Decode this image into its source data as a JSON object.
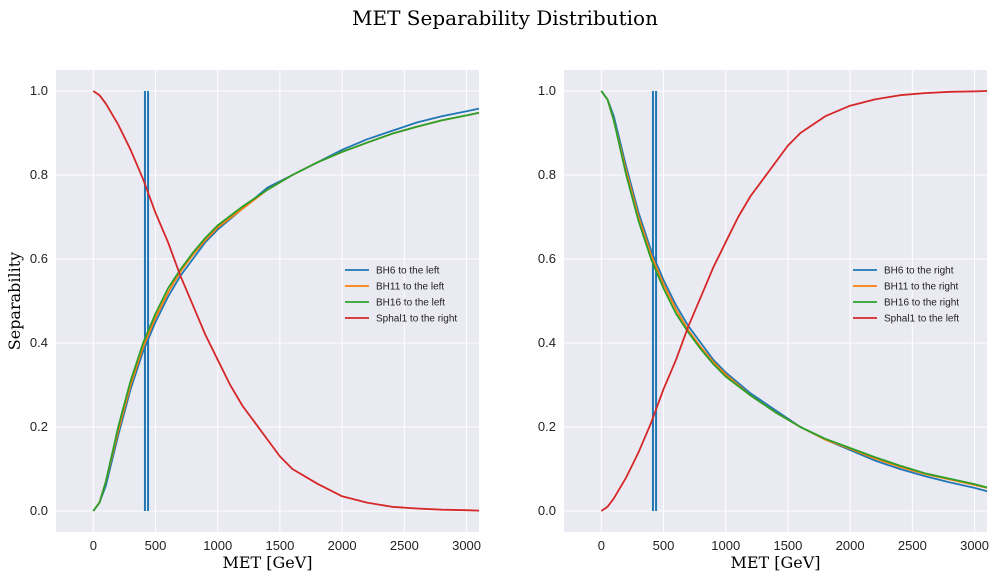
{
  "title": "MET Separability Distribution",
  "chart_data": [
    {
      "type": "line",
      "xlabel": "MET [GeV]",
      "ylabel": "Separability",
      "xlim": [
        -300,
        3100
      ],
      "ylim": [
        -0.05,
        1.05
      ],
      "xticks": [
        0,
        500,
        1000,
        1500,
        2000,
        2500,
        3000
      ],
      "yticks": [
        0.0,
        0.2,
        0.4,
        0.6,
        0.8,
        1.0
      ],
      "grid": true,
      "legend_position": "center-right",
      "vlines": [
        {
          "x": 415,
          "ymin": 0,
          "ymax": 1,
          "color": "#1f77b4"
        },
        {
          "x": 440,
          "ymin": 0,
          "ymax": 1,
          "color": "#1f77b4"
        }
      ],
      "series": [
        {
          "name": "BH6 to the left",
          "color": "#1f77b4",
          "x": [
            0,
            50,
            100,
            200,
            300,
            400,
            500,
            600,
            700,
            800,
            900,
            1000,
            1200,
            1400,
            1600,
            1800,
            2000,
            2200,
            2400,
            2600,
            2800,
            3000,
            3100
          ],
          "y": [
            0.0,
            0.02,
            0.06,
            0.18,
            0.29,
            0.38,
            0.45,
            0.51,
            0.56,
            0.6,
            0.64,
            0.67,
            0.72,
            0.77,
            0.8,
            0.83,
            0.86,
            0.885,
            0.905,
            0.925,
            0.94,
            0.952,
            0.958
          ]
        },
        {
          "name": "BH11 to the left",
          "color": "#ff7f0e",
          "x": [
            0,
            50,
            100,
            200,
            300,
            400,
            500,
            600,
            700,
            800,
            900,
            1000,
            1200,
            1400,
            1600,
            1800,
            2000,
            2200,
            2400,
            2600,
            2800,
            3000,
            3100
          ],
          "y": [
            0.0,
            0.02,
            0.07,
            0.19,
            0.3,
            0.39,
            0.46,
            0.52,
            0.57,
            0.61,
            0.645,
            0.675,
            0.72,
            0.765,
            0.8,
            0.83,
            0.855,
            0.877,
            0.898,
            0.915,
            0.93,
            0.942,
            0.948
          ]
        },
        {
          "name": "BH16 to the left",
          "color": "#2ca02c",
          "x": [
            0,
            50,
            100,
            200,
            300,
            400,
            500,
            600,
            700,
            800,
            900,
            1000,
            1200,
            1400,
            1600,
            1800,
            2000,
            2200,
            2400,
            2600,
            2800,
            3000,
            3100
          ],
          "y": [
            0.0,
            0.02,
            0.07,
            0.2,
            0.31,
            0.4,
            0.47,
            0.53,
            0.575,
            0.615,
            0.65,
            0.68,
            0.725,
            0.765,
            0.8,
            0.83,
            0.855,
            0.877,
            0.898,
            0.915,
            0.93,
            0.942,
            0.948
          ]
        },
        {
          "name": "Sphal1 to the right",
          "color": "#d62728",
          "x": [
            0,
            50,
            100,
            200,
            300,
            400,
            500,
            600,
            700,
            800,
            900,
            1000,
            1100,
            1200,
            1300,
            1400,
            1500,
            1600,
            1800,
            2000,
            2200,
            2400,
            2600,
            2800,
            3000,
            3100
          ],
          "y": [
            1.0,
            0.99,
            0.97,
            0.92,
            0.86,
            0.79,
            0.71,
            0.64,
            0.56,
            0.49,
            0.42,
            0.36,
            0.3,
            0.25,
            0.21,
            0.17,
            0.13,
            0.1,
            0.065,
            0.035,
            0.02,
            0.01,
            0.006,
            0.003,
            0.002,
            0.001
          ]
        }
      ]
    },
    {
      "type": "line",
      "xlabel": "MET [GeV]",
      "ylabel": "",
      "xlim": [
        -300,
        3100
      ],
      "ylim": [
        -0.05,
        1.05
      ],
      "xticks": [
        0,
        500,
        1000,
        1500,
        2000,
        2500,
        3000
      ],
      "yticks": [
        0.0,
        0.2,
        0.4,
        0.6,
        0.8,
        1.0
      ],
      "grid": true,
      "legend_position": "center-right",
      "vlines": [
        {
          "x": 415,
          "ymin": 0,
          "ymax": 1,
          "color": "#1f77b4"
        },
        {
          "x": 440,
          "ymin": 0,
          "ymax": 1,
          "color": "#1f77b4"
        }
      ],
      "series": [
        {
          "name": "BH6 to the right",
          "color": "#1f77b4",
          "x": [
            0,
            50,
            100,
            200,
            300,
            400,
            500,
            600,
            700,
            800,
            900,
            1000,
            1200,
            1400,
            1600,
            1800,
            2000,
            2200,
            2400,
            2600,
            2800,
            3000,
            3100
          ],
          "y": [
            1.0,
            0.98,
            0.94,
            0.82,
            0.71,
            0.62,
            0.55,
            0.49,
            0.44,
            0.4,
            0.36,
            0.33,
            0.28,
            0.24,
            0.2,
            0.17,
            0.145,
            0.12,
            0.1,
            0.083,
            0.068,
            0.055,
            0.047
          ]
        },
        {
          "name": "BH11 to the right",
          "color": "#ff7f0e",
          "x": [
            0,
            50,
            100,
            200,
            300,
            400,
            500,
            600,
            700,
            800,
            900,
            1000,
            1200,
            1400,
            1600,
            1800,
            2000,
            2200,
            2400,
            2600,
            2800,
            3000,
            3100
          ],
          "y": [
            1.0,
            0.98,
            0.93,
            0.81,
            0.7,
            0.61,
            0.54,
            0.48,
            0.43,
            0.39,
            0.355,
            0.325,
            0.275,
            0.235,
            0.2,
            0.17,
            0.148,
            0.125,
            0.105,
            0.088,
            0.075,
            0.062,
            0.055
          ]
        },
        {
          "name": "BH16 to the right",
          "color": "#2ca02c",
          "x": [
            0,
            50,
            100,
            200,
            300,
            400,
            500,
            600,
            700,
            800,
            900,
            1000,
            1200,
            1400,
            1600,
            1800,
            2000,
            2200,
            2400,
            2600,
            2800,
            3000,
            3100
          ],
          "y": [
            1.0,
            0.98,
            0.93,
            0.8,
            0.69,
            0.6,
            0.53,
            0.47,
            0.425,
            0.385,
            0.35,
            0.32,
            0.275,
            0.235,
            0.2,
            0.172,
            0.15,
            0.128,
            0.108,
            0.09,
            0.077,
            0.064,
            0.056
          ]
        },
        {
          "name": "Sphal1 to the left",
          "color": "#d62728",
          "x": [
            0,
            50,
            100,
            200,
            300,
            400,
            500,
            600,
            700,
            800,
            900,
            1000,
            1100,
            1200,
            1300,
            1400,
            1500,
            1600,
            1800,
            2000,
            2200,
            2400,
            2600,
            2800,
            3000,
            3100
          ],
          "y": [
            0.0,
            0.01,
            0.03,
            0.08,
            0.14,
            0.21,
            0.29,
            0.36,
            0.44,
            0.51,
            0.58,
            0.64,
            0.7,
            0.75,
            0.79,
            0.83,
            0.87,
            0.9,
            0.94,
            0.965,
            0.98,
            0.99,
            0.995,
            0.998,
            0.999,
            1.0
          ]
        }
      ]
    }
  ]
}
